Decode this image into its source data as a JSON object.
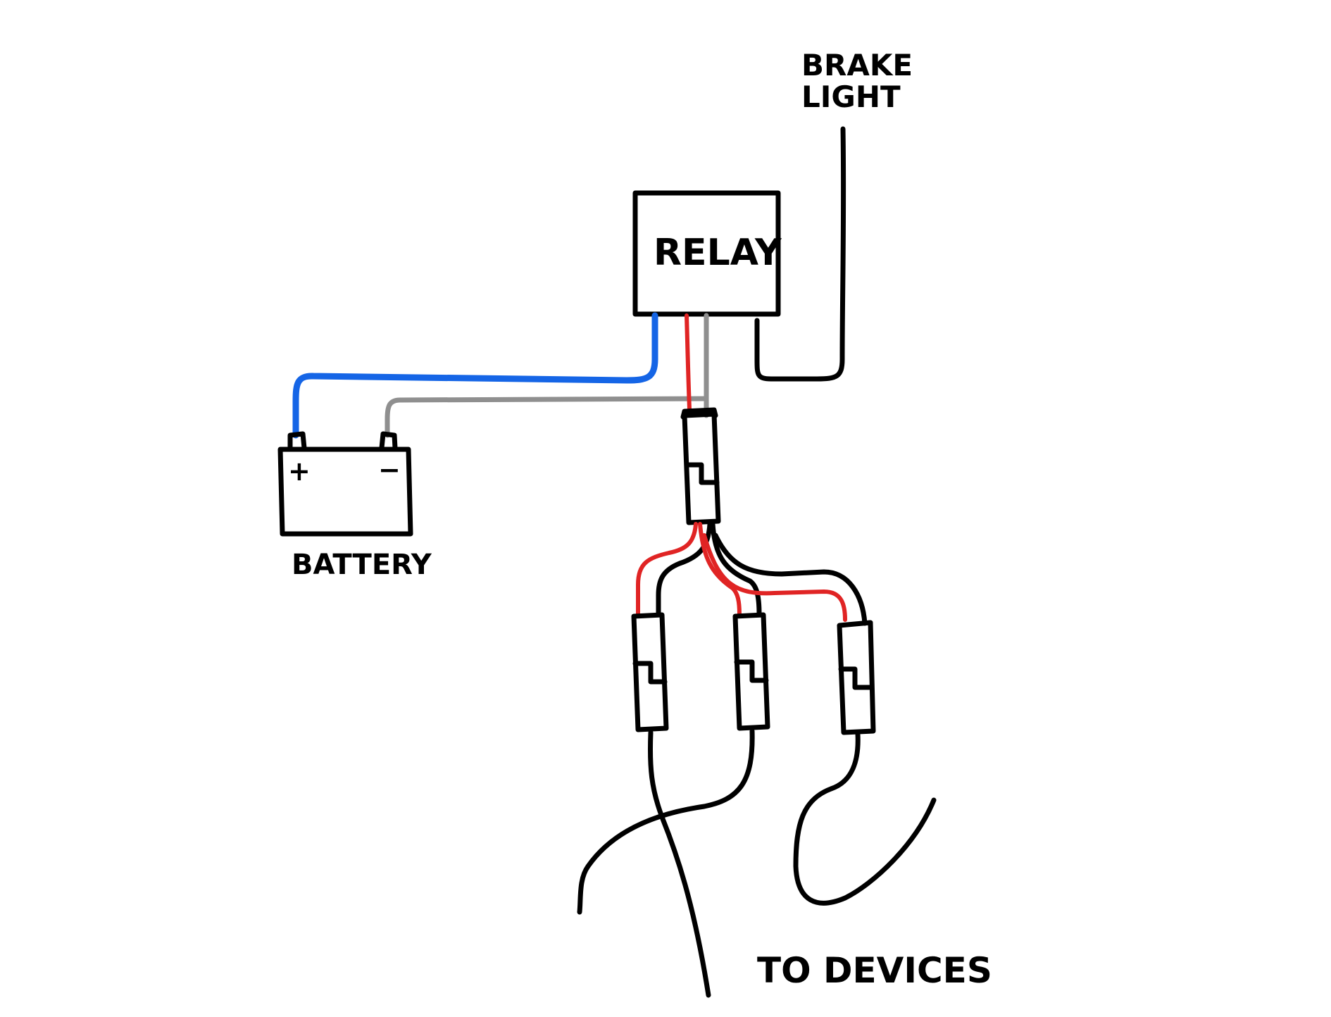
{
  "labels": {
    "brake_light_line1": "BRAKE",
    "brake_light_line2": "LIGHT",
    "relay": "RELAY",
    "battery": "BATTERY",
    "to_devices": "TO DEVICES",
    "battery_positive": "+",
    "battery_negative": "−"
  },
  "wire_colors": {
    "positive": "#1565e6",
    "ground": "#8f8f8f",
    "power": "#e02424",
    "black": "#000000"
  }
}
